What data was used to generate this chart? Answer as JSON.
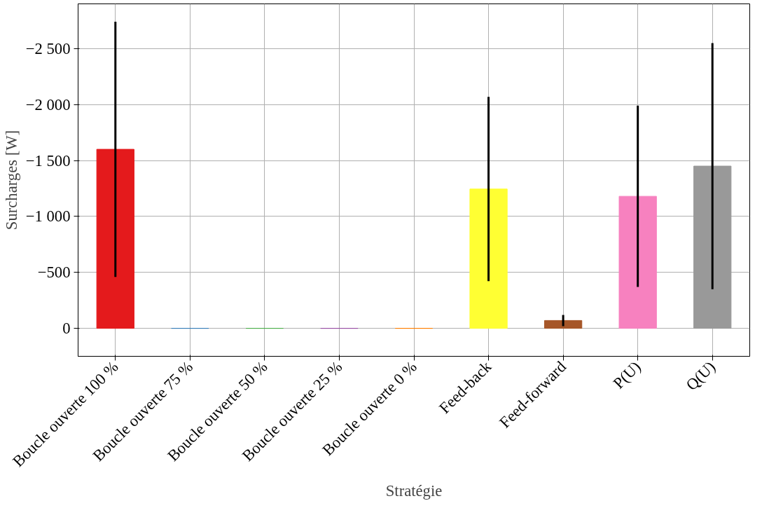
{
  "chart_data": {
    "type": "bar",
    "xlabel": "Stratégie",
    "ylabel": "Surcharges [W]",
    "categories": [
      "Boucle ouverte 100 %",
      "Boucle ouverte 75 %",
      "Boucle ouverte 50 %",
      "Boucle ouverte 25 %",
      "Boucle ouverte 0 %",
      "Feed-back",
      "Feed-forward",
      "P(U)",
      "Q(U)"
    ],
    "values": [
      -1600,
      0,
      0,
      0,
      0,
      -1245,
      -70,
      -1180,
      -1450
    ],
    "colors": [
      "#e41a1c",
      "#377eb8",
      "#4daf4a",
      "#984ea3",
      "#ff7f00",
      "#ffff33",
      "#a65628",
      "#f781bf",
      "#999999"
    ],
    "errors": [
      1140,
      null,
      null,
      null,
      null,
      823,
      50,
      810,
      1100
    ],
    "ylim": [
      250,
      -2900
    ],
    "yticks": [
      {
        "value": -2500,
        "label": "−2 500"
      },
      {
        "value": -2000,
        "label": "−2 000"
      },
      {
        "value": -1500,
        "label": "−1 500"
      },
      {
        "value": -1000,
        "label": "−1 000"
      },
      {
        "value": -500,
        "label": "−500"
      },
      0
    ],
    "grid": true
  }
}
